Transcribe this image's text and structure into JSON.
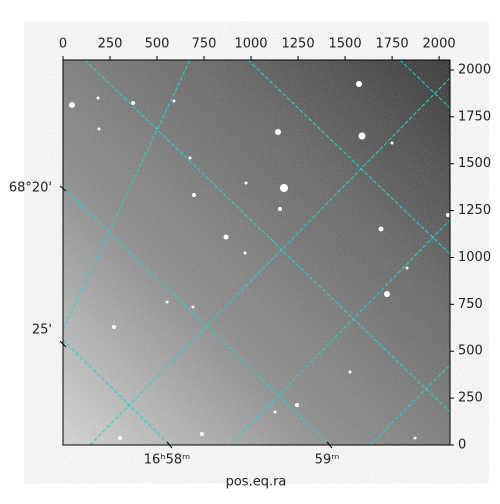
{
  "chart_data": {
    "type": "image",
    "xlabel": "pos.eq.ra",
    "xlim": [
      0,
      2058
    ],
    "xticks": [
      0,
      250,
      500,
      750,
      1000,
      1250,
      1500,
      1750,
      2000
    ],
    "ylim": [
      0,
      2053
    ],
    "yticks": [
      0,
      250,
      500,
      750,
      1000,
      1250,
      1500,
      1750,
      2000
    ],
    "left_labels": [
      "68°20'",
      "25'"
    ],
    "bottom_labels": [
      "16ʰ58ᵐ",
      "59ᵐ"
    ],
    "grid_color": "#22d3d3"
  }
}
